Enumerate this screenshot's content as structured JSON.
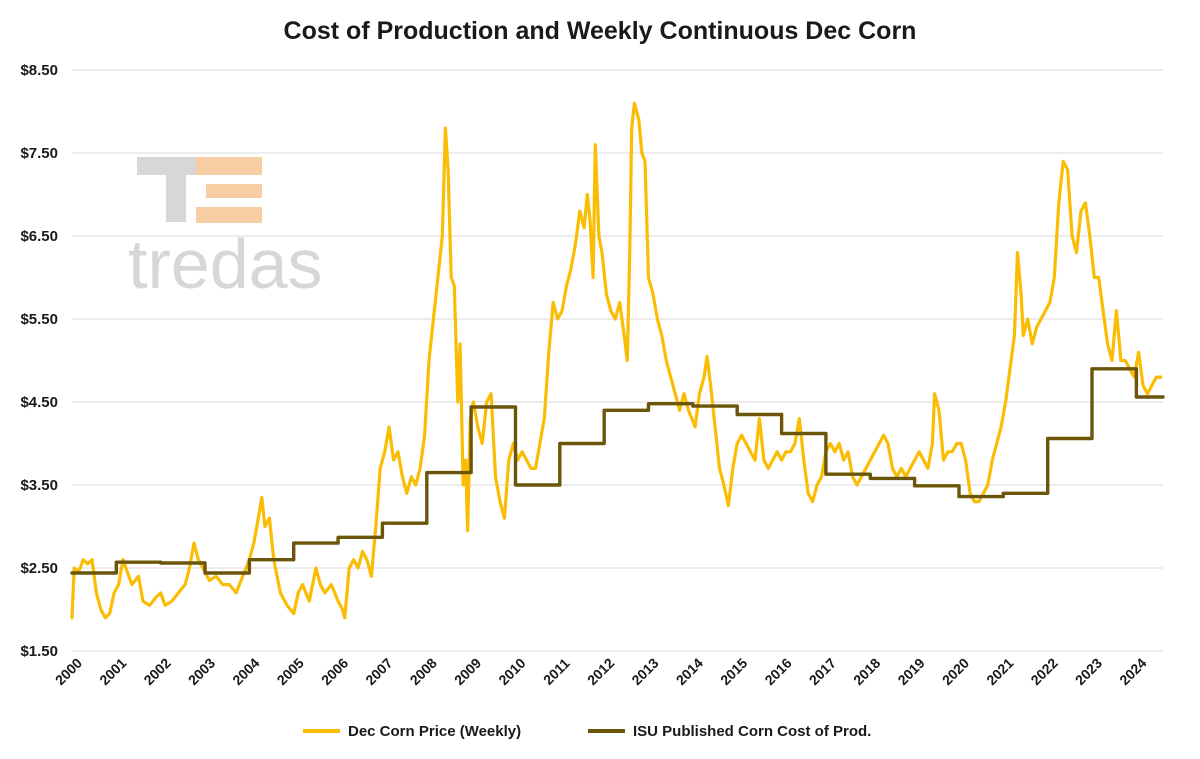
{
  "chart_data": {
    "type": "line",
    "title": "Cost of Production and Weekly Continuous Dec Corn",
    "xlabel": "",
    "ylabel": "",
    "xlim": [
      2000,
      2024.6
    ],
    "ylim": [
      1.5,
      8.5
    ],
    "y_ticks": [
      1.5,
      2.5,
      3.5,
      4.5,
      5.5,
      6.5,
      7.5,
      8.5
    ],
    "y_tick_labels": [
      "$1.50",
      "$2.50",
      "$3.50",
      "$4.50",
      "$5.50",
      "$6.50",
      "$7.50",
      "$8.50"
    ],
    "x_ticks": [
      2000,
      2001,
      2002,
      2003,
      2004,
      2005,
      2006,
      2007,
      2008,
      2009,
      2010,
      2011,
      2012,
      2013,
      2014,
      2015,
      2016,
      2017,
      2018,
      2019,
      2020,
      2021,
      2022,
      2023,
      2024
    ],
    "x_tick_labels": [
      "2000",
      "2001",
      "2002",
      "2003",
      "2004",
      "2005",
      "2006",
      "2007",
      "2008",
      "2009",
      "2010",
      "2011",
      "2012",
      "2013",
      "2014",
      "2015",
      "2016",
      "2017",
      "2018",
      "2019",
      "2020",
      "2021",
      "2022",
      "2023",
      "2024"
    ],
    "grid": "horizontal",
    "legend_position": "bottom",
    "series": [
      {
        "name": "Dec Corn Price (Weekly)",
        "color": "#fbbc04",
        "style": "line",
        "points": [
          [
            2000.0,
            1.9
          ],
          [
            2000.05,
            2.5
          ],
          [
            2000.15,
            2.45
          ],
          [
            2000.25,
            2.6
          ],
          [
            2000.35,
            2.55
          ],
          [
            2000.45,
            2.6
          ],
          [
            2000.55,
            2.2
          ],
          [
            2000.65,
            2.0
          ],
          [
            2000.75,
            1.9
          ],
          [
            2000.85,
            1.95
          ],
          [
            2000.95,
            2.2
          ],
          [
            2001.05,
            2.3
          ],
          [
            2001.15,
            2.6
          ],
          [
            2001.25,
            2.45
          ],
          [
            2001.35,
            2.3
          ],
          [
            2001.5,
            2.4
          ],
          [
            2001.6,
            2.1
          ],
          [
            2001.75,
            2.05
          ],
          [
            2001.9,
            2.15
          ],
          [
            2002.0,
            2.2
          ],
          [
            2002.1,
            2.05
          ],
          [
            2002.25,
            2.1
          ],
          [
            2002.4,
            2.2
          ],
          [
            2002.55,
            2.3
          ],
          [
            2002.65,
            2.5
          ],
          [
            2002.75,
            2.8
          ],
          [
            2002.85,
            2.6
          ],
          [
            2002.95,
            2.5
          ],
          [
            2003.1,
            2.35
          ],
          [
            2003.25,
            2.4
          ],
          [
            2003.4,
            2.3
          ],
          [
            2003.55,
            2.3
          ],
          [
            2003.7,
            2.2
          ],
          [
            2003.85,
            2.4
          ],
          [
            2004.0,
            2.6
          ],
          [
            2004.1,
            2.8
          ],
          [
            2004.2,
            3.1
          ],
          [
            2004.28,
            3.35
          ],
          [
            2004.35,
            3.0
          ],
          [
            2004.45,
            3.1
          ],
          [
            2004.55,
            2.6
          ],
          [
            2004.7,
            2.2
          ],
          [
            2004.85,
            2.05
          ],
          [
            2005.0,
            1.95
          ],
          [
            2005.1,
            2.2
          ],
          [
            2005.2,
            2.3
          ],
          [
            2005.35,
            2.1
          ],
          [
            2005.5,
            2.5
          ],
          [
            2005.6,
            2.3
          ],
          [
            2005.7,
            2.2
          ],
          [
            2005.85,
            2.3
          ],
          [
            2006.0,
            2.1
          ],
          [
            2006.1,
            2.0
          ],
          [
            2006.15,
            1.9
          ],
          [
            2006.25,
            2.5
          ],
          [
            2006.35,
            2.6
          ],
          [
            2006.45,
            2.5
          ],
          [
            2006.55,
            2.7
          ],
          [
            2006.65,
            2.6
          ],
          [
            2006.75,
            2.4
          ],
          [
            2006.85,
            3.0
          ],
          [
            2006.95,
            3.7
          ],
          [
            2007.05,
            3.9
          ],
          [
            2007.15,
            4.2
          ],
          [
            2007.25,
            3.8
          ],
          [
            2007.35,
            3.9
          ],
          [
            2007.45,
            3.6
          ],
          [
            2007.55,
            3.4
          ],
          [
            2007.65,
            3.6
          ],
          [
            2007.75,
            3.5
          ],
          [
            2007.85,
            3.7
          ],
          [
            2007.95,
            4.1
          ],
          [
            2008.05,
            5.0
          ],
          [
            2008.15,
            5.5
          ],
          [
            2008.25,
            6.0
          ],
          [
            2008.35,
            6.5
          ],
          [
            2008.42,
            7.8
          ],
          [
            2008.48,
            7.3
          ],
          [
            2008.55,
            6.0
          ],
          [
            2008.62,
            5.9
          ],
          [
            2008.7,
            4.5
          ],
          [
            2008.75,
            5.2
          ],
          [
            2008.82,
            3.5
          ],
          [
            2008.88,
            3.8
          ],
          [
            2008.92,
            2.95
          ],
          [
            2008.98,
            4.3
          ],
          [
            2009.05,
            4.5
          ],
          [
            2009.15,
            4.2
          ],
          [
            2009.25,
            4.0
          ],
          [
            2009.35,
            4.5
          ],
          [
            2009.45,
            4.6
          ],
          [
            2009.55,
            3.6
          ],
          [
            2009.65,
            3.3
          ],
          [
            2009.75,
            3.1
          ],
          [
            2009.85,
            3.8
          ],
          [
            2009.95,
            4.0
          ],
          [
            2010.05,
            3.8
          ],
          [
            2010.15,
            3.9
          ],
          [
            2010.25,
            3.8
          ],
          [
            2010.35,
            3.7
          ],
          [
            2010.45,
            3.7
          ],
          [
            2010.55,
            4.0
          ],
          [
            2010.65,
            4.3
          ],
          [
            2010.75,
            5.1
          ],
          [
            2010.85,
            5.7
          ],
          [
            2010.95,
            5.5
          ],
          [
            2011.05,
            5.6
          ],
          [
            2011.15,
            5.9
          ],
          [
            2011.25,
            6.1
          ],
          [
            2011.35,
            6.4
          ],
          [
            2011.45,
            6.8
          ],
          [
            2011.55,
            6.6
          ],
          [
            2011.62,
            7.0
          ],
          [
            2011.68,
            6.7
          ],
          [
            2011.75,
            6.0
          ],
          [
            2011.8,
            7.6
          ],
          [
            2011.88,
            6.5
          ],
          [
            2011.95,
            6.3
          ],
          [
            2012.05,
            5.8
          ],
          [
            2012.15,
            5.6
          ],
          [
            2012.25,
            5.5
          ],
          [
            2012.35,
            5.7
          ],
          [
            2012.45,
            5.3
          ],
          [
            2012.52,
            5.0
          ],
          [
            2012.58,
            6.4
          ],
          [
            2012.62,
            7.8
          ],
          [
            2012.68,
            8.1
          ],
          [
            2012.78,
            7.9
          ],
          [
            2012.85,
            7.5
          ],
          [
            2012.92,
            7.4
          ],
          [
            2013.0,
            6.0
          ],
          [
            2013.1,
            5.8
          ],
          [
            2013.2,
            5.5
          ],
          [
            2013.3,
            5.3
          ],
          [
            2013.4,
            5.0
          ],
          [
            2013.5,
            4.8
          ],
          [
            2013.6,
            4.6
          ],
          [
            2013.7,
            4.4
          ],
          [
            2013.8,
            4.6
          ],
          [
            2013.9,
            4.4
          ],
          [
            2014.05,
            4.2
          ],
          [
            2014.15,
            4.6
          ],
          [
            2014.25,
            4.8
          ],
          [
            2014.32,
            5.05
          ],
          [
            2014.4,
            4.7
          ],
          [
            2014.5,
            4.2
          ],
          [
            2014.6,
            3.7
          ],
          [
            2014.7,
            3.5
          ],
          [
            2014.8,
            3.25
          ],
          [
            2014.9,
            3.7
          ],
          [
            2015.0,
            4.0
          ],
          [
            2015.1,
            4.1
          ],
          [
            2015.2,
            4.0
          ],
          [
            2015.3,
            3.9
          ],
          [
            2015.4,
            3.8
          ],
          [
            2015.5,
            4.3
          ],
          [
            2015.6,
            3.8
          ],
          [
            2015.7,
            3.7
          ],
          [
            2015.8,
            3.8
          ],
          [
            2015.9,
            3.9
          ],
          [
            2016.0,
            3.8
          ],
          [
            2016.1,
            3.9
          ],
          [
            2016.2,
            3.9
          ],
          [
            2016.3,
            4.0
          ],
          [
            2016.4,
            4.3
          ],
          [
            2016.5,
            3.8
          ],
          [
            2016.6,
            3.4
          ],
          [
            2016.7,
            3.3
          ],
          [
            2016.8,
            3.5
          ],
          [
            2016.9,
            3.6
          ],
          [
            2017.0,
            3.9
          ],
          [
            2017.1,
            4.0
          ],
          [
            2017.2,
            3.9
          ],
          [
            2017.3,
            4.0
          ],
          [
            2017.4,
            3.8
          ],
          [
            2017.5,
            3.9
          ],
          [
            2017.6,
            3.6
          ],
          [
            2017.7,
            3.5
          ],
          [
            2017.8,
            3.6
          ],
          [
            2017.9,
            3.7
          ],
          [
            2018.0,
            3.8
          ],
          [
            2018.1,
            3.9
          ],
          [
            2018.2,
            4.0
          ],
          [
            2018.3,
            4.1
          ],
          [
            2018.4,
            4.0
          ],
          [
            2018.5,
            3.7
          ],
          [
            2018.6,
            3.6
          ],
          [
            2018.7,
            3.7
          ],
          [
            2018.8,
            3.6
          ],
          [
            2018.9,
            3.7
          ],
          [
            2019.0,
            3.8
          ],
          [
            2019.1,
            3.9
          ],
          [
            2019.2,
            3.8
          ],
          [
            2019.3,
            3.7
          ],
          [
            2019.4,
            4.0
          ],
          [
            2019.45,
            4.6
          ],
          [
            2019.55,
            4.4
          ],
          [
            2019.65,
            3.8
          ],
          [
            2019.75,
            3.9
          ],
          [
            2019.85,
            3.9
          ],
          [
            2019.95,
            4.0
          ],
          [
            2020.05,
            4.0
          ],
          [
            2020.15,
            3.8
          ],
          [
            2020.25,
            3.4
          ],
          [
            2020.35,
            3.3
          ],
          [
            2020.45,
            3.3
          ],
          [
            2020.55,
            3.4
          ],
          [
            2020.65,
            3.5
          ],
          [
            2020.75,
            3.8
          ],
          [
            2020.85,
            4.0
          ],
          [
            2020.95,
            4.2
          ],
          [
            2021.05,
            4.5
          ],
          [
            2021.15,
            4.9
          ],
          [
            2021.25,
            5.3
          ],
          [
            2021.32,
            6.3
          ],
          [
            2021.4,
            5.8
          ],
          [
            2021.45,
            5.3
          ],
          [
            2021.55,
            5.5
          ],
          [
            2021.65,
            5.2
          ],
          [
            2021.75,
            5.4
          ],
          [
            2021.85,
            5.5
          ],
          [
            2021.95,
            5.6
          ],
          [
            2022.05,
            5.7
          ],
          [
            2022.15,
            6.0
          ],
          [
            2022.25,
            6.9
          ],
          [
            2022.35,
            7.4
          ],
          [
            2022.45,
            7.3
          ],
          [
            2022.55,
            6.5
          ],
          [
            2022.65,
            6.3
          ],
          [
            2022.75,
            6.8
          ],
          [
            2022.85,
            6.9
          ],
          [
            2022.95,
            6.5
          ],
          [
            2023.05,
            6.0
          ],
          [
            2023.15,
            6.0
          ],
          [
            2023.25,
            5.6
          ],
          [
            2023.35,
            5.2
          ],
          [
            2023.45,
            5.0
          ],
          [
            2023.55,
            5.6
          ],
          [
            2023.65,
            5.0
          ],
          [
            2023.75,
            5.0
          ],
          [
            2023.85,
            4.9
          ],
          [
            2023.95,
            4.8
          ],
          [
            2024.05,
            5.1
          ],
          [
            2024.15,
            4.7
          ],
          [
            2024.25,
            4.6
          ],
          [
            2024.35,
            4.7
          ],
          [
            2024.45,
            4.8
          ],
          [
            2024.55,
            4.8
          ]
        ]
      },
      {
        "name": "ISU Published Corn Cost of Prod.",
        "color": "#6b5509",
        "style": "step",
        "points": [
          [
            2000.0,
            2.44
          ],
          [
            2001.0,
            2.57
          ],
          [
            2002.0,
            2.56
          ],
          [
            2003.0,
            2.44
          ],
          [
            2004.0,
            2.6
          ],
          [
            2005.0,
            2.8
          ],
          [
            2006.0,
            2.87
          ],
          [
            2007.0,
            3.04
          ],
          [
            2008.0,
            3.65
          ],
          [
            2009.0,
            4.44
          ],
          [
            2010.0,
            3.5
          ],
          [
            2011.0,
            4.0
          ],
          [
            2012.0,
            4.4
          ],
          [
            2013.0,
            4.48
          ],
          [
            2014.0,
            4.45
          ],
          [
            2015.0,
            4.35
          ],
          [
            2016.0,
            4.12
          ],
          [
            2017.0,
            3.63
          ],
          [
            2018.0,
            3.58
          ],
          [
            2019.0,
            3.49
          ],
          [
            2020.0,
            3.36
          ],
          [
            2021.0,
            3.4
          ],
          [
            2022.0,
            4.06
          ],
          [
            2023.0,
            4.9
          ],
          [
            2024.0,
            4.56
          ],
          [
            2024.6,
            4.56
          ]
        ]
      }
    ]
  },
  "watermark": {
    "text": "tredas",
    "colors": {
      "letter": "#d3d3d3",
      "bar": "#f7c89a"
    }
  }
}
